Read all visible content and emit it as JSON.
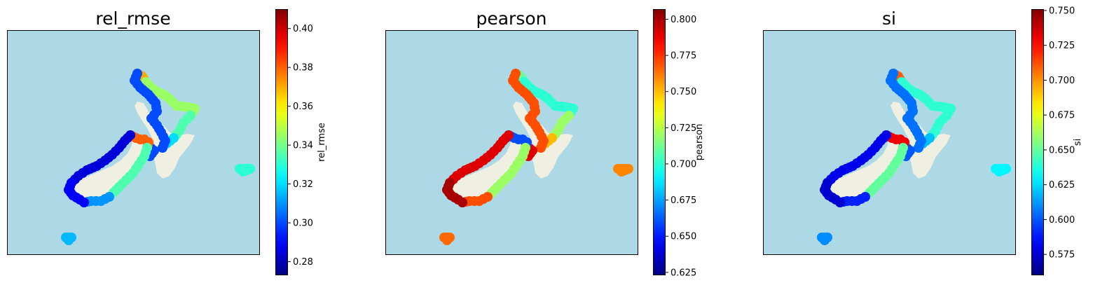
{
  "colors": {
    "ocean": "#add8e6",
    "land": "#efefe2",
    "frame": "#000000",
    "colormap": "jet"
  },
  "chart_data": [
    {
      "type": "scatter",
      "title": "rel_rmse",
      "colorbar_label": "rel_rmse",
      "vmin": 0.273,
      "vmax": 0.41,
      "ticks": [
        0.28,
        0.3,
        0.32,
        0.34,
        0.36,
        0.38,
        0.4
      ],
      "tick_labels": [
        "0.28",
        "0.30",
        "0.32",
        "0.34",
        "0.36",
        "0.38",
        "0.40"
      ],
      "regions": {
        "north_island_west": 0.3,
        "north_island_northland": 0.345,
        "north_island_tip": 0.37,
        "north_island_east": 0.335,
        "north_island_bay": 0.32,
        "cook_strait": 0.3,
        "south_island_north": 0.38,
        "south_island_west": 0.285,
        "south_island_fiordland": 0.29,
        "south_island_east": 0.335,
        "south_island_southeast": 0.31,
        "chatham_islands": 0.33,
        "subantarctic_island": 0.315
      },
      "grid": false
    },
    {
      "type": "scatter",
      "title": "pearson",
      "colorbar_label": "pearson",
      "vmin": 0.623,
      "vmax": 0.807,
      "ticks": [
        0.625,
        0.65,
        0.675,
        0.7,
        0.725,
        0.75,
        0.775,
        0.8
      ],
      "tick_labels": [
        "0.625",
        "0.650",
        "0.675",
        "0.700",
        "0.725",
        "0.750",
        "0.775",
        "0.800"
      ],
      "regions": {
        "north_island_west": 0.77,
        "north_island_northland": 0.7,
        "north_island_tip": 0.71,
        "north_island_east": 0.72,
        "north_island_bay": 0.75,
        "cook_strait": 0.79,
        "south_island_north": 0.66,
        "south_island_west": 0.79,
        "south_island_fiordland": 0.8,
        "south_island_east": 0.72,
        "south_island_southeast": 0.77,
        "chatham_islands": 0.76,
        "subantarctic_island": 0.765
      },
      "grid": false
    },
    {
      "type": "scatter",
      "title": "si",
      "colorbar_label": "si",
      "vmin": 0.56,
      "vmax": 0.751,
      "ticks": [
        0.575,
        0.6,
        0.625,
        0.65,
        0.675,
        0.7,
        0.725,
        0.75
      ],
      "tick_labels": [
        "0.575",
        "0.600",
        "0.625",
        "0.650",
        "0.675",
        "0.700",
        "0.725",
        "0.750"
      ],
      "regions": {
        "north_island_west": 0.605,
        "north_island_northland": 0.64,
        "north_island_tip": 0.71,
        "north_island_east": 0.64,
        "north_island_bay": 0.62,
        "cook_strait": 0.6,
        "south_island_north": 0.73,
        "south_island_west": 0.58,
        "south_island_fiordland": 0.575,
        "south_island_east": 0.65,
        "south_island_southeast": 0.59,
        "chatham_islands": 0.63,
        "subantarctic_island": 0.61
      },
      "grid": false
    }
  ]
}
